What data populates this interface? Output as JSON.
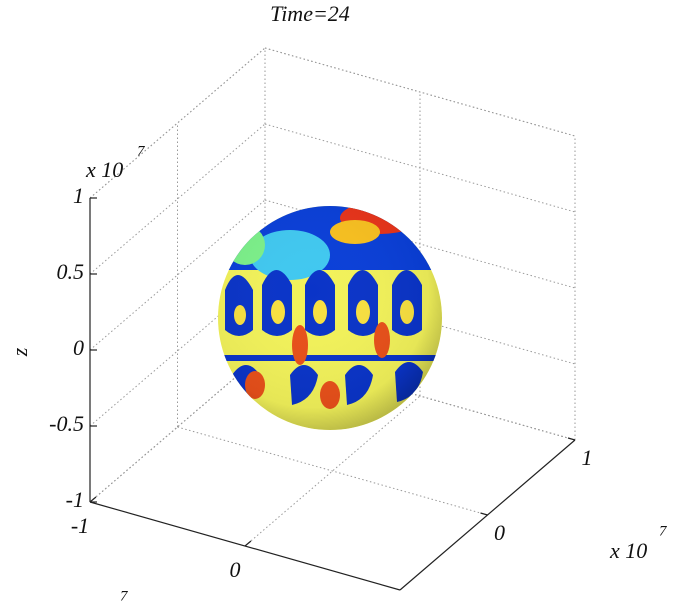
{
  "chart_data": {
    "type": "sphere3d",
    "title": "Time=24",
    "zlabel": "z",
    "xlim": [
      -1,
      1
    ],
    "ylim": [
      -1,
      1
    ],
    "zlim": [
      -1,
      1
    ],
    "xticks": [
      -1,
      0
    ],
    "yticks": [
      0,
      1
    ],
    "zticks": [
      -1,
      -0.5,
      0,
      0.5,
      1
    ],
    "zmultiplier": {
      "base": "x 10",
      "exponent": "7"
    },
    "ymultiplier": {
      "base": "x 10",
      "exponent": "7"
    },
    "xmultiplier": {
      "exponent": "7"
    },
    "grid": true
  }
}
